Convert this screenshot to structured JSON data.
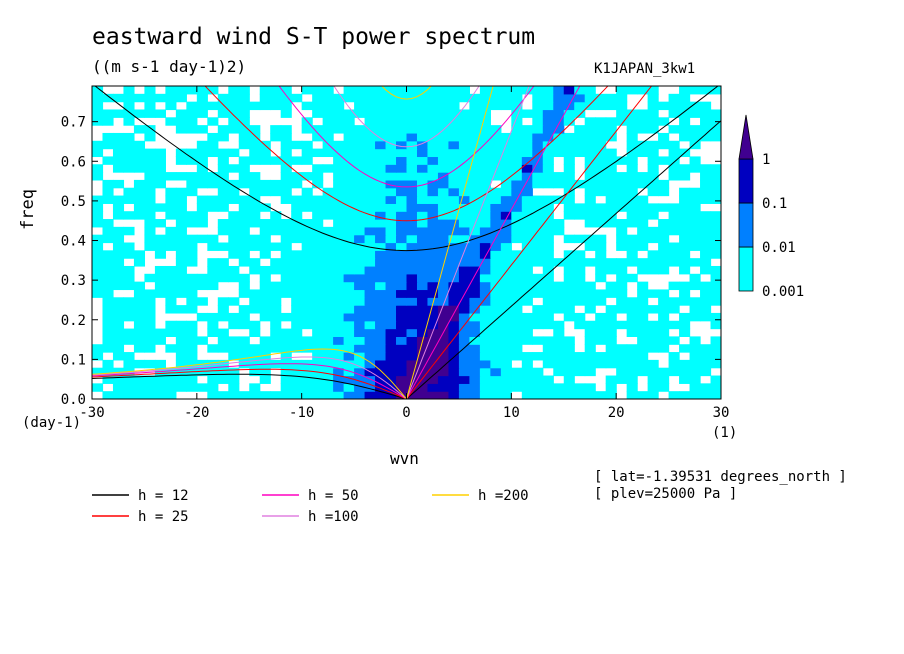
{
  "header": {
    "title": "eastward wind S-T power spectrum",
    "units": "((m s-1 day-1)2)",
    "dataset": "K1JAPAN_3kw1"
  },
  "notes": {
    "lat": "[ lat=-1.39531 degrees_north ]",
    "plev": "[ plev=25000 Pa ]"
  },
  "axis_units": {
    "y_unit": "(day-1)",
    "x_unit": "(1)"
  },
  "chart_data": {
    "type": "heatmap",
    "title": "eastward wind S-T power spectrum",
    "xlabel": "wvn",
    "ylabel": "freq",
    "xlim": [
      -30,
      30
    ],
    "ylim": [
      0,
      0.79
    ],
    "x_ticks": [
      -30,
      -20,
      -10,
      0,
      10,
      20,
      30
    ],
    "x_tick_labels": [
      "-30",
      "-20",
      "-10",
      "0",
      "10",
      "20",
      "30"
    ],
    "y_ticks": [
      0,
      0.1,
      0.2,
      0.3,
      0.4,
      0.5,
      0.6,
      0.7
    ],
    "y_tick_labels": [
      "0.0",
      "0.1",
      "0.2",
      "0.3",
      "0.4",
      "0.5",
      "0.6",
      "0.7"
    ],
    "colorbar": {
      "levels": [
        0.001,
        0.01,
        0.1,
        1
      ],
      "labels": [
        "0.001",
        "0.01",
        "0.1",
        "1"
      ],
      "colors": [
        "#00ffff",
        "#0080ff",
        "#0000c0",
        "#400090"
      ]
    },
    "dispersion_curves": {
      "equivalent_depths": [
        12,
        25,
        50,
        100,
        200
      ],
      "legend_labels": [
        "h = 12",
        "h = 25",
        "h = 50",
        "h =100",
        "h =200"
      ],
      "colors": [
        "#000000",
        "#ff0000",
        "#ff00c0",
        "#e080e0",
        "#ffd000"
      ]
    },
    "power_field_summary": [
      {
        "x_range": [
          -2,
          8
        ],
        "y_range": [
          0,
          0.55
        ],
        "level": "0.1-1"
      },
      {
        "x_range": [
          -8,
          12
        ],
        "y_range": [
          0,
          0.25
        ],
        "level": "0.1-1"
      },
      {
        "x_range": [
          -30,
          30
        ],
        "y_range": [
          0,
          0.79
        ],
        "level": "0.001-0.01"
      }
    ]
  }
}
